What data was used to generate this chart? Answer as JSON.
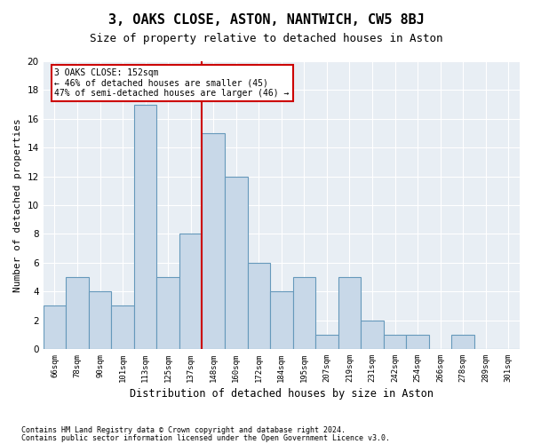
{
  "title": "3, OAKS CLOSE, ASTON, NANTWICH, CW5 8BJ",
  "subtitle": "Size of property relative to detached houses in Aston",
  "xlabel": "Distribution of detached houses by size in Aston",
  "ylabel": "Number of detached properties",
  "footer1": "Contains HM Land Registry data © Crown copyright and database right 2024.",
  "footer2": "Contains public sector information licensed under the Open Government Licence v3.0.",
  "bin_labels": [
    "66sqm",
    "78sqm",
    "90sqm",
    "101sqm",
    "113sqm",
    "125sqm",
    "137sqm",
    "148sqm",
    "160sqm",
    "172sqm",
    "184sqm",
    "195sqm",
    "207sqm",
    "219sqm",
    "231sqm",
    "242sqm",
    "254sqm",
    "266sqm",
    "278sqm",
    "289sqm",
    "301sqm"
  ],
  "bar_heights": [
    3,
    5,
    4,
    3,
    17,
    5,
    8,
    15,
    12,
    6,
    4,
    5,
    1,
    5,
    2,
    1,
    1,
    0,
    1,
    0,
    0
  ],
  "bar_color": "#c8d8e8",
  "bar_edge_color": "#6699bb",
  "subject_bar_index": 7,
  "subject_line_color": "#cc0000",
  "annotation_line1": "3 OAKS CLOSE: 152sqm",
  "annotation_line2": "← 46% of detached houses are smaller (45)",
  "annotation_line3": "47% of semi-detached houses are larger (46) →",
  "annotation_box_color": "white",
  "annotation_box_edge_color": "#cc0000",
  "ylim": [
    0,
    20
  ],
  "yticks": [
    0,
    2,
    4,
    6,
    8,
    10,
    12,
    14,
    16,
    18,
    20
  ],
  "axes_bg_color": "#e8eef4",
  "grid_color": "white",
  "title_fontsize": 11,
  "subtitle_fontsize": 9,
  "ylabel_fontsize": 8,
  "xlabel_fontsize": 8.5,
  "tick_fontsize": 6.5,
  "footer_fontsize": 6
}
